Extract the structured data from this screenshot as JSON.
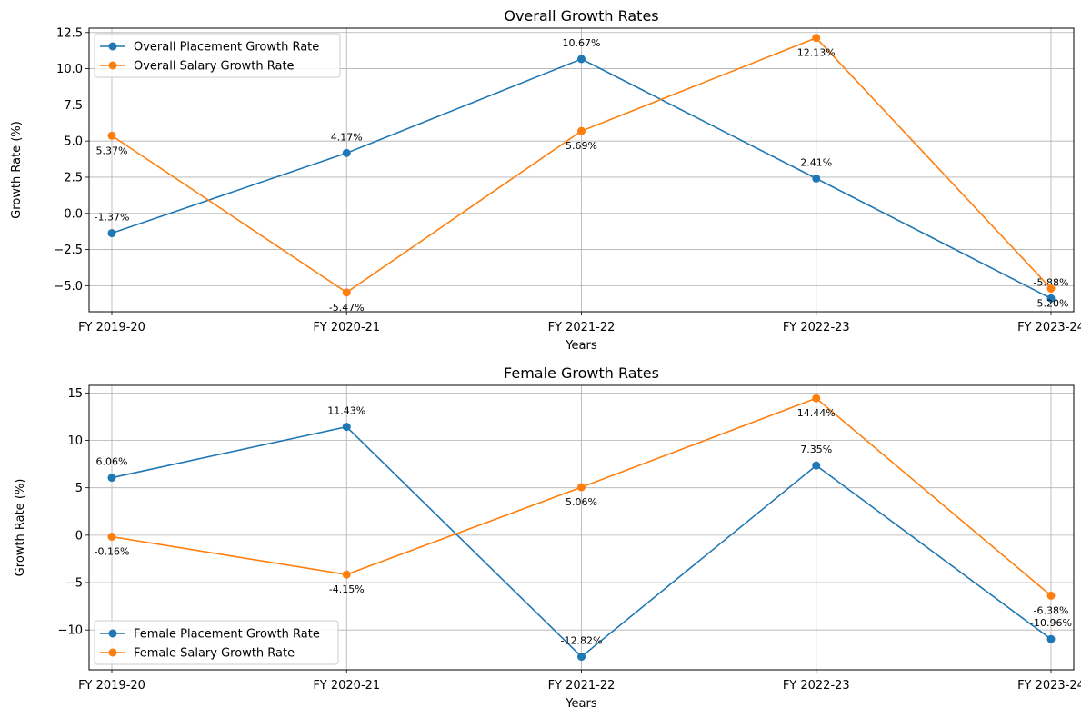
{
  "chart_data": [
    {
      "type": "line",
      "title": "Overall Growth Rates",
      "xlabel": "Years",
      "ylabel": "Growth Rate (%)",
      "categories": [
        "FY 2019-20",
        "FY 2020-21",
        "FY 2021-22",
        "FY 2022-23",
        "FY 2023-24"
      ],
      "ylim": [
        -6.8,
        12.8
      ],
      "yticks": [
        -5.0,
        -2.5,
        0.0,
        2.5,
        5.0,
        7.5,
        10.0,
        12.5
      ],
      "ytick_labels": [
        "−5.0",
        "−2.5",
        "0.0",
        "2.5",
        "5.0",
        "7.5",
        "10.0",
        "12.5"
      ],
      "grid": true,
      "legend_position": "top-left",
      "series": [
        {
          "name": "Overall Placement Growth Rate",
          "color": "#1f77b4",
          "values": [
            -1.37,
            4.17,
            10.67,
            2.41,
            -5.88
          ],
          "labels": [
            "-1.37%",
            "4.17%",
            "10.67%",
            "2.41%",
            "-5.88%"
          ],
          "label_position": [
            "above",
            "above",
            "above",
            "above",
            "above"
          ]
        },
        {
          "name": "Overall Salary Growth Rate",
          "color": "#ff7f0e",
          "values": [
            5.37,
            -5.47,
            5.69,
            12.13,
            -5.2
          ],
          "labels": [
            "5.37%",
            "-5.47%",
            "5.69%",
            "12.13%",
            "-5.20%"
          ],
          "label_position": [
            "below",
            "below",
            "below",
            "below",
            "below"
          ]
        }
      ]
    },
    {
      "type": "line",
      "title": "Female Growth Rates",
      "xlabel": "Years",
      "ylabel": "Growth Rate (%)",
      "categories": [
        "FY 2019-20",
        "FY 2020-21",
        "FY 2021-22",
        "FY 2022-23",
        "FY 2023-24"
      ],
      "ylim": [
        -14.2,
        15.8
      ],
      "yticks": [
        -10,
        -5,
        0,
        5,
        10,
        15
      ],
      "ytick_labels": [
        "−10",
        "−5",
        "0",
        "5",
        "10",
        "15"
      ],
      "grid": true,
      "legend_position": "bottom-left",
      "series": [
        {
          "name": "Female Placement Growth Rate",
          "color": "#1f77b4",
          "values": [
            6.06,
            11.43,
            -12.82,
            7.35,
            -10.96
          ],
          "labels": [
            "6.06%",
            "11.43%",
            "-12.82%",
            "7.35%",
            "-10.96%"
          ],
          "label_position": [
            "above",
            "above",
            "above",
            "above",
            "above"
          ]
        },
        {
          "name": "Female Salary Growth Rate",
          "color": "#ff7f0e",
          "values": [
            -0.16,
            -4.15,
            5.06,
            14.44,
            -6.38
          ],
          "labels": [
            "-0.16%",
            "-4.15%",
            "5.06%",
            "14.44%",
            "-6.38%"
          ],
          "label_position": [
            "below",
            "below",
            "below",
            "below",
            "below"
          ]
        }
      ]
    }
  ]
}
